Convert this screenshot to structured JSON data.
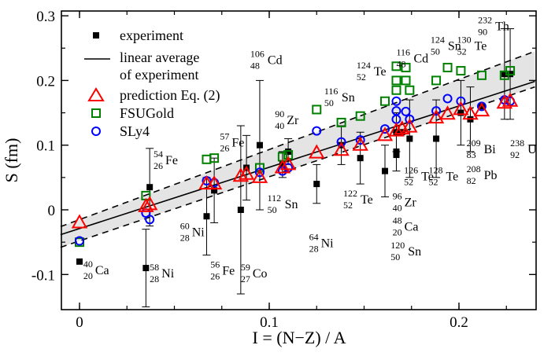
{
  "chart_data": {
    "type": "scatter",
    "xlabel": "I = (N−Z) / A",
    "ylabel": "S  (fm)",
    "xlim": [
      -0.01,
      0.24
    ],
    "ylim": [
      -0.15,
      0.3
    ],
    "x_ticks": [
      0,
      0.1,
      0.2
    ],
    "x_tick_labels": [
      "0",
      "0.1",
      "0.2"
    ],
    "y_ticks": [
      -0.1,
      0,
      0.1,
      0.2,
      0.3
    ],
    "y_tick_labels": [
      "-0.1",
      "0",
      "0.1",
      "0.2",
      "0.3"
    ],
    "legend": [
      {
        "key": "experiment",
        "label": "experiment"
      },
      {
        "key": "average",
        "label_line1": "linear average",
        "label_line2": "of experiment"
      },
      {
        "key": "prediction",
        "label": "prediction Eq. (2)"
      },
      {
        "key": "fsugold",
        "label": "FSUGold"
      },
      {
        "key": "sly4",
        "label": "SLy4"
      }
    ],
    "linear_average": {
      "slope": 0.948,
      "intercept": -0.029
    },
    "band": {
      "upper": [
        [
          -0.01,
          -0.026
        ],
        [
          0.24,
          0.245
        ]
      ],
      "lower": [
        [
          -0.01,
          -0.058
        ],
        [
          0.24,
          0.19
        ]
      ]
    },
    "series": [
      {
        "name": "experiment",
        "marker": "filled-square",
        "color": "#000000",
        "points": [
          {
            "x": 0.0,
            "y": -0.08,
            "err": 0.0
          },
          {
            "x": 0.035,
            "y": -0.09,
            "err": 0.06
          },
          {
            "x": 0.037,
            "y": 0.035,
            "err": 0.06
          },
          {
            "x": 0.067,
            "y": -0.01,
            "err": 0.06
          },
          {
            "x": 0.071,
            "y": 0.03,
            "err": 0.05
          },
          {
            "x": 0.085,
            "y": 0.0,
            "err": 0.13
          },
          {
            "x": 0.088,
            "y": 0.065,
            "err": 0.05
          },
          {
            "x": 0.095,
            "y": 0.1,
            "err": 0.1
          },
          {
            "x": 0.107,
            "y": 0.07,
            "err": 0.02
          },
          {
            "x": 0.11,
            "y": 0.09,
            "err": 0.02
          },
          {
            "x": 0.125,
            "y": 0.04,
            "err": 0.03
          },
          {
            "x": 0.138,
            "y": 0.1,
            "err": 0.03
          },
          {
            "x": 0.148,
            "y": 0.08,
            "err": 0.04
          },
          {
            "x": 0.161,
            "y": 0.06,
            "err": 0.04
          },
          {
            "x": 0.167,
            "y": 0.09,
            "err": 0.03
          },
          {
            "x": 0.167,
            "y": 0.085,
            "err": 0.0
          },
          {
            "x": 0.167,
            "y": 0.12,
            "err": 0.03
          },
          {
            "x": 0.17,
            "y": 0.12,
            "err": 0.0
          },
          {
            "x": 0.174,
            "y": 0.11,
            "err": 0.06
          },
          {
            "x": 0.188,
            "y": 0.11,
            "err": 0.06
          },
          {
            "x": 0.201,
            "y": 0.15,
            "err": 0.05
          },
          {
            "x": 0.206,
            "y": 0.14,
            "err": 0.05
          },
          {
            "x": 0.212,
            "y": 0.16,
            "err": 0.0
          },
          {
            "x": 0.224,
            "y": 0.21,
            "err": 0.07
          },
          {
            "x": 0.227,
            "y": 0.21,
            "err": 0.07
          }
        ]
      },
      {
        "name": "prediction Eq. (2)",
        "marker": "open-triangle",
        "color": "#ff0000",
        "points": [
          {
            "x": 0.0,
            "y": -0.02
          },
          {
            "x": 0.035,
            "y": 0.005
          },
          {
            "x": 0.037,
            "y": 0.008
          },
          {
            "x": 0.067,
            "y": 0.04
          },
          {
            "x": 0.071,
            "y": 0.04
          },
          {
            "x": 0.085,
            "y": 0.052
          },
          {
            "x": 0.088,
            "y": 0.055
          },
          {
            "x": 0.095,
            "y": 0.05
          },
          {
            "x": 0.107,
            "y": 0.065
          },
          {
            "x": 0.11,
            "y": 0.07
          },
          {
            "x": 0.125,
            "y": 0.088
          },
          {
            "x": 0.138,
            "y": 0.092
          },
          {
            "x": 0.148,
            "y": 0.1
          },
          {
            "x": 0.161,
            "y": 0.115
          },
          {
            "x": 0.167,
            "y": 0.122
          },
          {
            "x": 0.17,
            "y": 0.125
          },
          {
            "x": 0.174,
            "y": 0.128
          },
          {
            "x": 0.188,
            "y": 0.142
          },
          {
            "x": 0.194,
            "y": 0.148
          },
          {
            "x": 0.201,
            "y": 0.155
          },
          {
            "x": 0.206,
            "y": 0.148
          },
          {
            "x": 0.212,
            "y": 0.153
          },
          {
            "x": 0.224,
            "y": 0.165
          },
          {
            "x": 0.227,
            "y": 0.168
          }
        ]
      },
      {
        "name": "FSUGold",
        "marker": "open-square",
        "color": "#008000",
        "points": [
          {
            "x": 0.0,
            "y": -0.05
          },
          {
            "x": 0.035,
            "y": 0.022
          },
          {
            "x": 0.067,
            "y": 0.078
          },
          {
            "x": 0.071,
            "y": 0.08
          },
          {
            "x": 0.095,
            "y": 0.065
          },
          {
            "x": 0.107,
            "y": 0.082
          },
          {
            "x": 0.11,
            "y": 0.085
          },
          {
            "x": 0.125,
            "y": 0.155
          },
          {
            "x": 0.138,
            "y": 0.135
          },
          {
            "x": 0.148,
            "y": 0.145
          },
          {
            "x": 0.161,
            "y": 0.168
          },
          {
            "x": 0.167,
            "y": 0.222
          },
          {
            "x": 0.167,
            "y": 0.2
          },
          {
            "x": 0.167,
            "y": 0.185
          },
          {
            "x": 0.172,
            "y": 0.2
          },
          {
            "x": 0.174,
            "y": 0.185
          },
          {
            "x": 0.172,
            "y": 0.22
          },
          {
            "x": 0.188,
            "y": 0.2
          },
          {
            "x": 0.194,
            "y": 0.22
          },
          {
            "x": 0.201,
            "y": 0.215
          },
          {
            "x": 0.212,
            "y": 0.208
          },
          {
            "x": 0.224,
            "y": 0.208
          },
          {
            "x": 0.227,
            "y": 0.215
          }
        ]
      },
      {
        "name": "SLy4",
        "marker": "open-circle",
        "color": "#0000ff",
        "points": [
          {
            "x": 0.0,
            "y": -0.048
          },
          {
            "x": 0.035,
            "y": -0.005
          },
          {
            "x": 0.037,
            "y": -0.015
          },
          {
            "x": 0.067,
            "y": 0.045
          },
          {
            "x": 0.071,
            "y": 0.042
          },
          {
            "x": 0.095,
            "y": 0.058
          },
          {
            "x": 0.107,
            "y": 0.06
          },
          {
            "x": 0.11,
            "y": 0.065
          },
          {
            "x": 0.125,
            "y": 0.122
          },
          {
            "x": 0.138,
            "y": 0.105
          },
          {
            "x": 0.148,
            "y": 0.108
          },
          {
            "x": 0.161,
            "y": 0.125
          },
          {
            "x": 0.167,
            "y": 0.168
          },
          {
            "x": 0.167,
            "y": 0.153
          },
          {
            "x": 0.167,
            "y": 0.14
          },
          {
            "x": 0.172,
            "y": 0.152
          },
          {
            "x": 0.174,
            "y": 0.14
          },
          {
            "x": 0.188,
            "y": 0.153
          },
          {
            "x": 0.194,
            "y": 0.172
          },
          {
            "x": 0.201,
            "y": 0.168
          },
          {
            "x": 0.212,
            "y": 0.16
          },
          {
            "x": 0.224,
            "y": 0.17
          },
          {
            "x": 0.227,
            "y": 0.168
          }
        ]
      }
    ],
    "annotations": [
      {
        "A": "40",
        "Z": "20",
        "sym": "Ca",
        "x": 0.002,
        "y": -0.097
      },
      {
        "A": "58",
        "Z": "28",
        "sym": "Ni",
        "x": 0.037,
        "y": -0.102
      },
      {
        "A": "54",
        "Z": "26",
        "sym": "Fe",
        "x": 0.039,
        "y": 0.073
      },
      {
        "A": "60",
        "Z": "28",
        "sym": "Ni",
        "x": 0.053,
        "y": -0.038
      },
      {
        "A": "56",
        "Z": "26",
        "sym": "Fe",
        "x": 0.069,
        "y": -0.098
      },
      {
        "A": "57",
        "Z": "26",
        "sym": "Fe",
        "x": 0.074,
        "y": 0.1
      },
      {
        "A": "59",
        "Z": "27",
        "sym": "Co",
        "x": 0.085,
        "y": -0.102
      },
      {
        "A": "106",
        "Z": "48",
        "sym": "Cd",
        "x": 0.09,
        "y": 0.228
      },
      {
        "A": "90",
        "Z": "40",
        "sym": "Zr",
        "x": 0.103,
        "y": 0.135
      },
      {
        "A": "112",
        "Z": "50",
        "sym": "Sn",
        "x": 0.099,
        "y": 0.005
      },
      {
        "A": "116",
        "Z": "50",
        "sym": "Sn",
        "x": 0.129,
        "y": 0.17
      },
      {
        "A": "64",
        "Z": "28",
        "sym": "Ni",
        "x": 0.121,
        "y": -0.055
      },
      {
        "A": "124",
        "Z": "52",
        "sym": "Te",
        "x": 0.146,
        "y": 0.21
      },
      {
        "A": "122",
        "Z": "52",
        "sym": "Te",
        "x": 0.139,
        "y": 0.012
      },
      {
        "A": "116",
        "Z": "48",
        "sym": "Cd",
        "x": 0.167,
        "y": 0.23
      },
      {
        "A": "96",
        "Z": "40",
        "sym": "Zr",
        "x": 0.165,
        "y": 0.008
      },
      {
        "A": "48",
        "Z": "20",
        "sym": "Ca",
        "x": 0.165,
        "y": -0.03
      },
      {
        "A": "120",
        "Z": "50",
        "sym": "Sn",
        "x": 0.164,
        "y": -0.068
      },
      {
        "A": "126",
        "Z": "52",
        "sym": "Te",
        "x": 0.171,
        "y": 0.048
      },
      {
        "A": "124",
        "Z": "50",
        "sym": "Sn",
        "x": 0.185,
        "y": 0.25
      },
      {
        "A": "130",
        "Z": "52",
        "sym": "Te",
        "x": 0.199,
        "y": 0.25
      },
      {
        "A": "128",
        "Z": "52",
        "sym": "Te",
        "x": 0.184,
        "y": 0.048
      },
      {
        "A": "232",
        "Z": "90",
        "sym": "Th",
        "x": 0.21,
        "y": 0.28
      },
      {
        "A": "209",
        "Z": "83",
        "sym": "Bi",
        "x": 0.204,
        "y": 0.09
      },
      {
        "A": "208",
        "Z": "82",
        "sym": "Pb",
        "x": 0.204,
        "y": 0.05
      },
      {
        "A": "238",
        "Z": "92",
        "sym": "U",
        "x": 0.227,
        "y": 0.09
      }
    ]
  }
}
